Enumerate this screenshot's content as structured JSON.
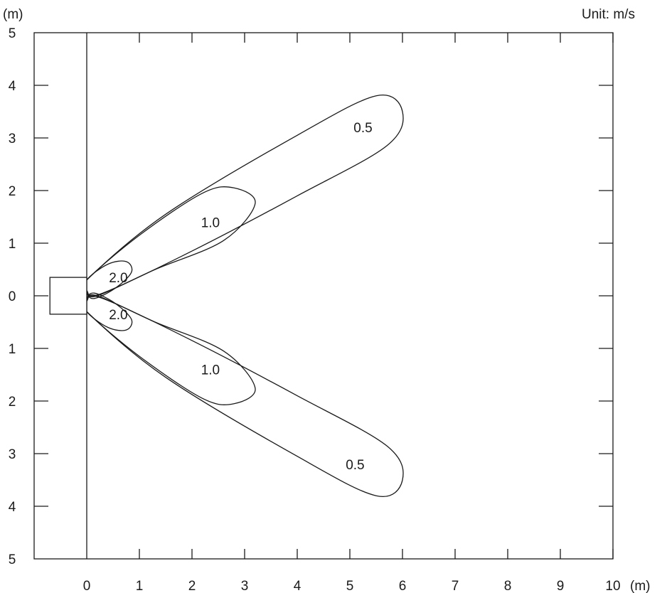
{
  "chart_data": {
    "type": "contour",
    "unit_label": "Unit: m/s",
    "x_unit_label": "(m)",
    "y_unit_label": "(m)",
    "xlim": [
      -1,
      10
    ],
    "ylim": [
      -5,
      5
    ],
    "x_ticks": [
      "0",
      "1",
      "2",
      "3",
      "4",
      "5",
      "6",
      "7",
      "8",
      "9",
      "10"
    ],
    "y_ticks_top": [
      "5",
      "4",
      "3",
      "2",
      "1",
      "0"
    ],
    "y_ticks_bottom": [
      "1",
      "2",
      "3",
      "4",
      "5"
    ],
    "grid": false,
    "source_box": {
      "x": [
        -0.7,
        0
      ],
      "y": [
        -0.35,
        0.35
      ]
    },
    "contours": [
      {
        "label": "2.0",
        "velocity": 2.0,
        "branch": "upper",
        "label_at": [
          0.6,
          0.35
        ],
        "points": [
          [
            0.0,
            0.3
          ],
          [
            0.4,
            0.6
          ],
          [
            0.75,
            0.65
          ],
          [
            0.85,
            0.45
          ],
          [
            0.55,
            0.15
          ],
          [
            0.15,
            -0.05
          ],
          [
            0.0,
            0.05
          ]
        ]
      },
      {
        "label": "2.0",
        "velocity": 2.0,
        "branch": "lower",
        "label_at": [
          0.6,
          -0.35
        ],
        "points": [
          [
            0.0,
            -0.3
          ],
          [
            0.4,
            -0.6
          ],
          [
            0.75,
            -0.65
          ],
          [
            0.85,
            -0.45
          ],
          [
            0.55,
            -0.15
          ],
          [
            0.15,
            0.05
          ],
          [
            0.0,
            -0.05
          ]
        ]
      },
      {
        "label": "1.0",
        "velocity": 1.0,
        "branch": "upper",
        "label_at": [
          2.35,
          1.4
        ],
        "points": [
          [
            0.0,
            0.3
          ],
          [
            1.0,
            1.15
          ],
          [
            2.2,
            1.95
          ],
          [
            2.8,
            2.05
          ],
          [
            3.2,
            1.75
          ],
          [
            2.6,
            1.05
          ],
          [
            1.3,
            0.5
          ],
          [
            0.2,
            0.0
          ],
          [
            0.0,
            0.1
          ]
        ]
      },
      {
        "label": "1.0",
        "velocity": 1.0,
        "branch": "lower",
        "label_at": [
          2.35,
          -1.4
        ],
        "points": [
          [
            0.0,
            -0.3
          ],
          [
            1.0,
            -1.15
          ],
          [
            2.2,
            -1.95
          ],
          [
            2.8,
            -2.05
          ],
          [
            3.2,
            -1.75
          ],
          [
            2.6,
            -1.05
          ],
          [
            1.3,
            -0.5
          ],
          [
            0.2,
            0.0
          ],
          [
            0.0,
            -0.1
          ]
        ]
      },
      {
        "label": "0.5",
        "velocity": 0.5,
        "branch": "upper",
        "label_at": [
          5.25,
          3.2
        ],
        "points": [
          [
            0.0,
            0.3
          ],
          [
            1.5,
            1.55
          ],
          [
            4.0,
            3.05
          ],
          [
            5.5,
            3.8
          ],
          [
            6.0,
            3.5
          ],
          [
            5.7,
            2.85
          ],
          [
            4.0,
            1.9
          ],
          [
            2.0,
            0.85
          ],
          [
            0.3,
            0.05
          ],
          [
            0.0,
            0.1
          ]
        ]
      },
      {
        "label": "0.5",
        "velocity": 0.5,
        "branch": "lower",
        "label_at": [
          5.1,
          -3.2
        ],
        "points": [
          [
            0.0,
            -0.3
          ],
          [
            1.5,
            -1.55
          ],
          [
            4.0,
            -3.05
          ],
          [
            5.5,
            -3.8
          ],
          [
            6.0,
            -3.5
          ],
          [
            5.7,
            -2.85
          ],
          [
            4.0,
            -1.9
          ],
          [
            2.0,
            -0.85
          ],
          [
            0.3,
            -0.05
          ],
          [
            0.0,
            -0.1
          ]
        ]
      }
    ]
  }
}
